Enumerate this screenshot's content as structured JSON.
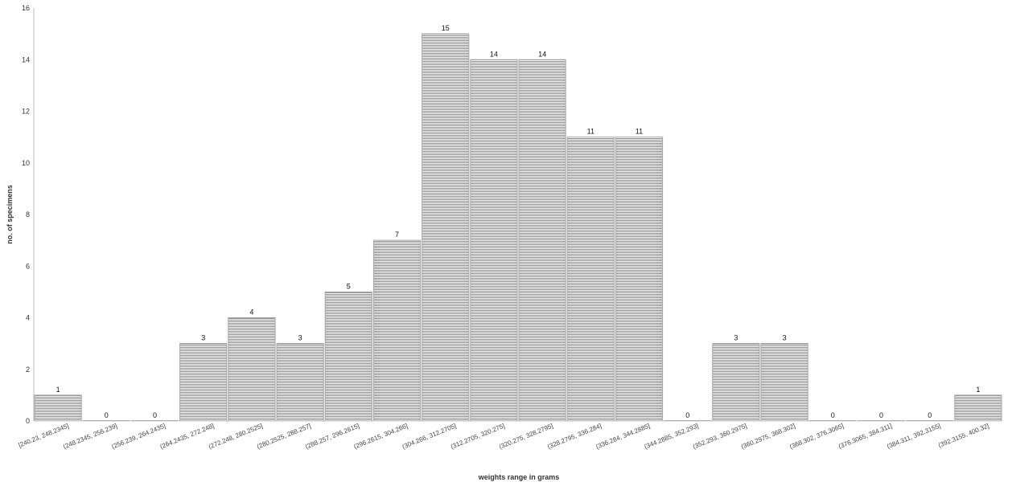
{
  "chart_data": {
    "type": "bar",
    "title": "",
    "xlabel": "weights range in grams",
    "ylabel": "no. of specimens",
    "ylim": [
      0,
      16
    ],
    "yticks": [
      0,
      2,
      4,
      6,
      8,
      10,
      12,
      14,
      16
    ],
    "grid": false,
    "legend": "none",
    "bar_color": "#808080",
    "categories": [
      "[240.23, 248.2345]",
      "(248.2345, 256.239]",
      "(256.239, 264.2435]",
      "(264.2435, 272.248]",
      "(272.248, 280.2525]",
      "(280.2525, 288.257]",
      "(288.257, 296.2615]",
      "(296.2615, 304.266]",
      "(304.266, 312.2705]",
      "(312.2705, 320.275]",
      "(320.275, 328.2795]",
      "(328.2795, 336.284]",
      "(336.284, 344.2885]",
      "(344.2885, 352.293]",
      "(352.293, 360.2975]",
      "(360.2975, 368.302]",
      "(368.302, 376.3065]",
      "(376.3065, 384.311]",
      "(384.311, 392.3155]",
      "(392.3155, 400.32]"
    ],
    "values": [
      1,
      0,
      0,
      3,
      4,
      3,
      5,
      7,
      15,
      14,
      14,
      11,
      11,
      0,
      3,
      3,
      0,
      0,
      0,
      1
    ]
  }
}
